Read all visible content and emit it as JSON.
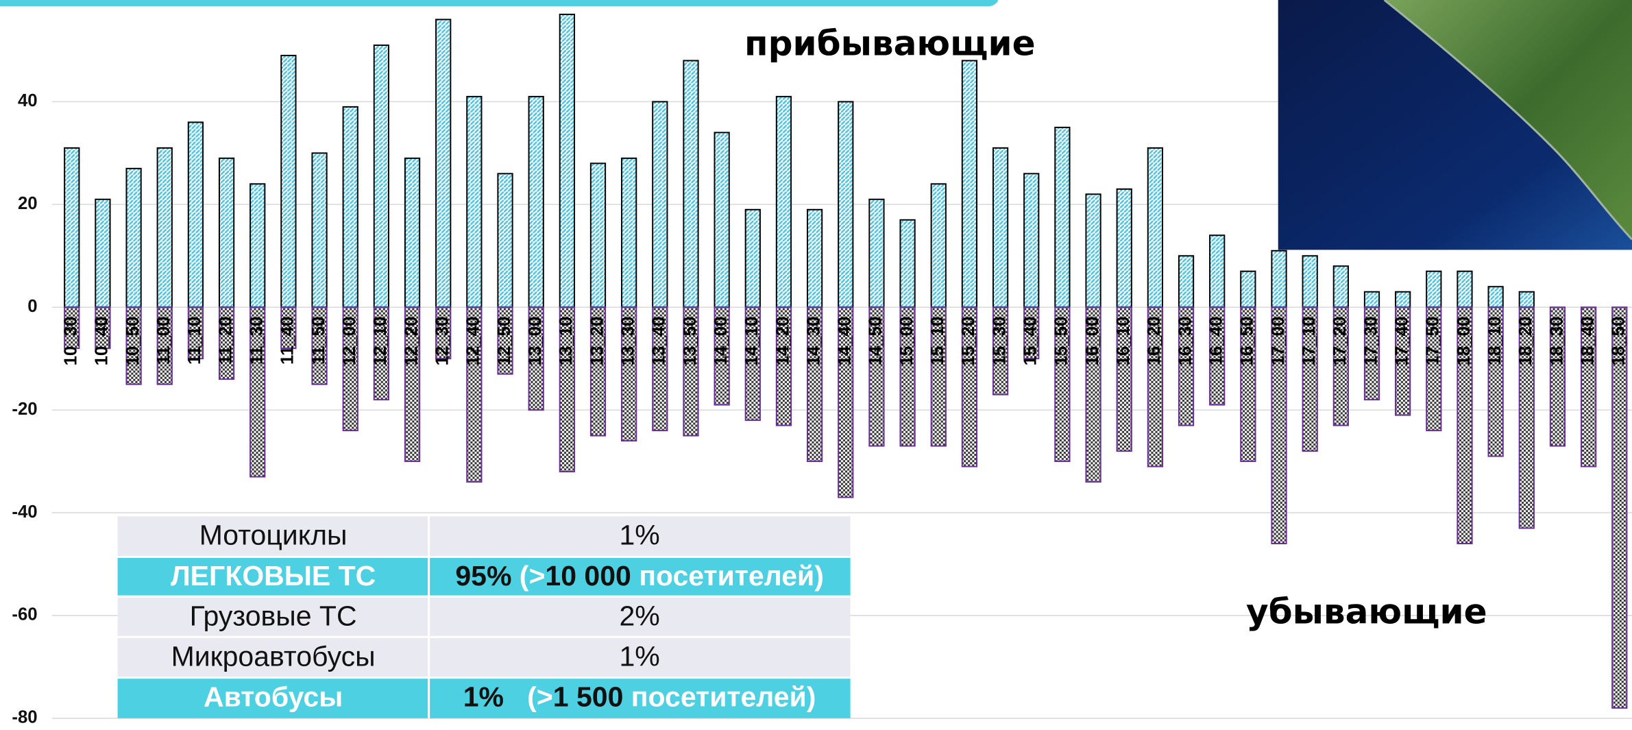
{
  "chart_data": {
    "type": "bar",
    "categories": [
      "10_30",
      "10_40",
      "10_50",
      "11_00",
      "11_10",
      "11_20",
      "11_30",
      "11_40",
      "11_50",
      "12_00",
      "12_10",
      "12_20",
      "12_30",
      "12_40",
      "12_50",
      "13_00",
      "13_10",
      "13_20",
      "13_30",
      "13_40",
      "13_50",
      "14_00",
      "14_10",
      "14_20",
      "14_30",
      "14_40",
      "14_50",
      "15_00",
      "15_10",
      "15_20",
      "15_30",
      "15_40",
      "15_50",
      "16_00",
      "16_10",
      "16_20",
      "16_30",
      "16_40",
      "16_50",
      "17_00",
      "17_10",
      "17_20",
      "17_30",
      "17_40",
      "17_50",
      "18_00",
      "18_10",
      "18_20",
      "18_30",
      "18_40",
      "18_50"
    ],
    "series": [
      {
        "name": "прибывающие",
        "color": "#4ec3e0",
        "values": [
          31,
          21,
          27,
          31,
          36,
          29,
          24,
          49,
          30,
          39,
          51,
          29,
          56,
          41,
          26,
          41,
          57,
          28,
          29,
          40,
          48,
          34,
          19,
          41,
          19,
          40,
          21,
          17,
          24,
          48,
          31,
          26,
          35,
          22,
          23,
          31,
          10,
          14,
          7,
          11,
          10,
          8,
          3,
          3,
          7,
          7,
          4,
          3,
          0,
          0,
          0
        ]
      },
      {
        "name": "убывающие",
        "color": "#333333",
        "values": [
          -8,
          -8,
          -15,
          -15,
          -10,
          -14,
          -33,
          -8,
          -15,
          -24,
          -18,
          -30,
          -10,
          -34,
          -13,
          -20,
          -32,
          -25,
          -26,
          -24,
          -25,
          -19,
          -22,
          -23,
          -30,
          -37,
          -27,
          -27,
          -27,
          -31,
          -17,
          -10,
          -30,
          -34,
          -28,
          -31,
          -23,
          -19,
          -30,
          -46,
          -28,
          -23,
          -18,
          -21,
          -24,
          -46,
          -29,
          -43,
          -27,
          -31,
          -78
        ]
      }
    ],
    "ylim": [
      -80,
      60
    ],
    "yticks": [
      -80,
      -60,
      -40,
      -20,
      0,
      20,
      40
    ],
    "grid": true
  },
  "table": {
    "rows": [
      [
        [
          "Мотоциклы"
        ],
        [
          "1%"
        ]
      ],
      [
        [
          "ЛЕГКОВЫЕ ТС"
        ],
        [
          "95%",
          " (>",
          "10 000",
          " посетителей)"
        ]
      ],
      [
        [
          "Грузовые ТС"
        ],
        [
          "2%"
        ]
      ],
      [
        [
          "Микроавтобусы"
        ],
        [
          "1%"
        ]
      ],
      [
        [
          "Автобусы"
        ],
        [
          "1%",
          "   (>",
          "1 500",
          " посетителей)"
        ]
      ]
    ]
  }
}
